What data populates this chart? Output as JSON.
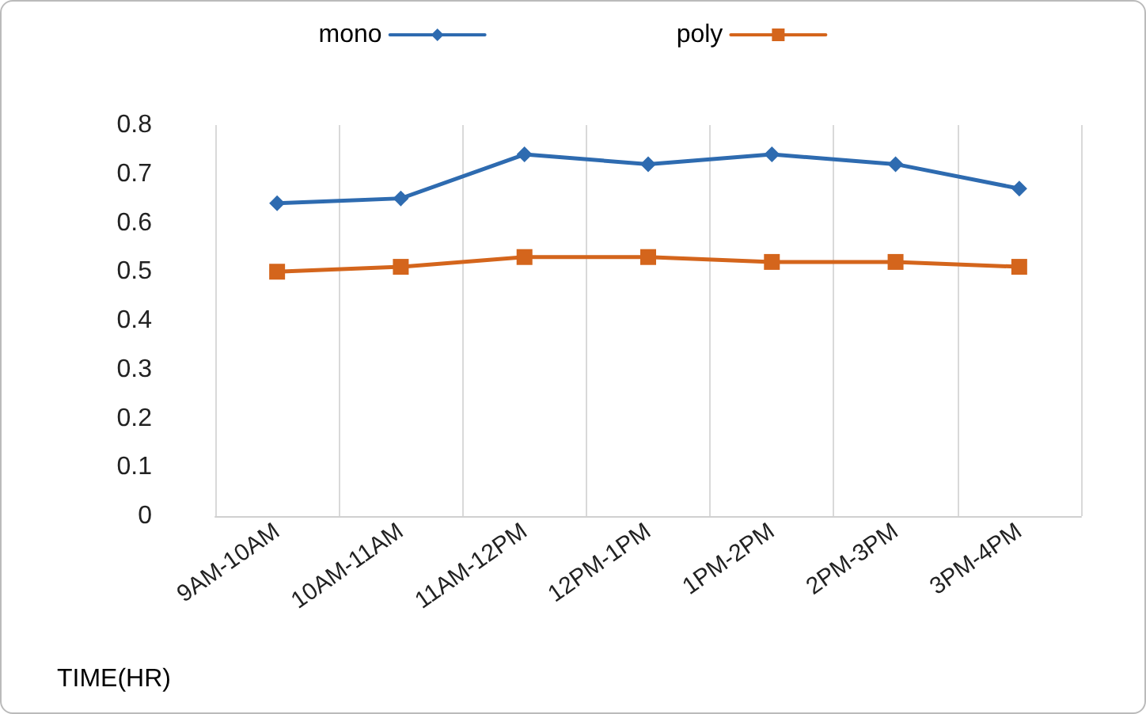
{
  "chart_data": {
    "type": "line",
    "xlabel": "TIME(HR)",
    "categories": [
      "9AM-10AM",
      "10AM-11AM",
      "11AM-12PM",
      "12PM-1PM",
      "1PM-2PM",
      "2PM-3PM",
      "3PM-4PM"
    ],
    "series": [
      {
        "name": "mono",
        "color": "#2e6bb0",
        "marker": "diamond",
        "values": [
          0.64,
          0.65,
          0.74,
          0.72,
          0.74,
          0.72,
          0.67
        ]
      },
      {
        "name": "poly",
        "color": "#d4651c",
        "marker": "square",
        "values": [
          0.5,
          0.51,
          0.53,
          0.53,
          0.52,
          0.52,
          0.51
        ]
      }
    ],
    "ylim": [
      0,
      0.8
    ],
    "yticks": [
      0,
      0.1,
      0.2,
      0.3,
      0.4,
      0.5,
      0.6,
      0.7,
      0.8
    ],
    "grid": "x",
    "legend": "top",
    "line_style": "solid"
  }
}
